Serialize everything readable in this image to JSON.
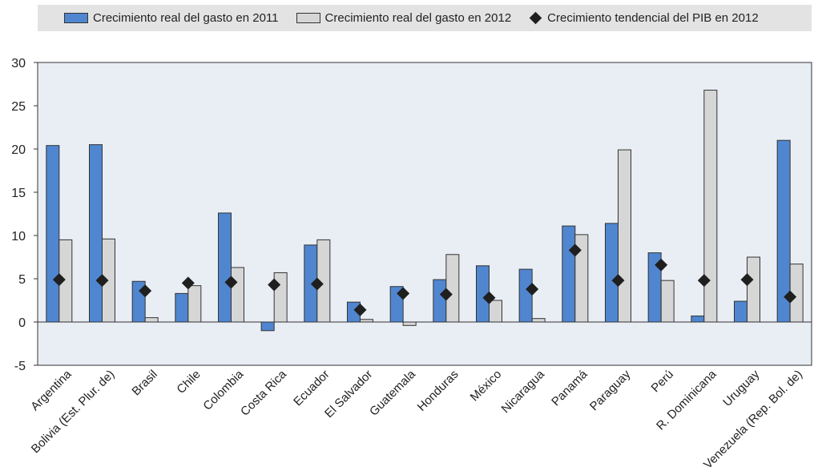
{
  "colors": {
    "s2011": "#4f86cf",
    "s2012": "#d6d6d6",
    "marker": "#1f1f1f",
    "plot_bg": "#e9eef5"
  },
  "chart_data": {
    "type": "bar",
    "categories": [
      "Argentina",
      "Bolivia (Est. Plur. de)",
      "Brasil",
      "Chile",
      "Colombia",
      "Costa Rica",
      "Ecuador",
      "El Salvador",
      "Guatemala",
      "Honduras",
      "México",
      "Nicaragua",
      "Panamá",
      "Paraguay",
      "Perú",
      "R. Dominicana",
      "Uruguay",
      "Venezuela (Rep. Bol. de)"
    ],
    "series": [
      {
        "name": "Crecimiento real del gasto en 2011",
        "type": "bar",
        "values": [
          20.4,
          20.5,
          4.7,
          3.3,
          12.6,
          -1.0,
          8.9,
          2.3,
          4.1,
          4.9,
          6.5,
          6.1,
          11.1,
          11.4,
          8.0,
          0.7,
          2.4,
          21.0
        ]
      },
      {
        "name": "Crecimiento real del gasto en 2012",
        "type": "bar",
        "values": [
          9.5,
          9.6,
          0.5,
          4.2,
          6.3,
          5.7,
          9.5,
          0.3,
          -0.4,
          7.8,
          2.5,
          0.4,
          10.1,
          19.9,
          4.8,
          26.8,
          7.5,
          6.7
        ]
      },
      {
        "name": "Crecimiento tendencial del PIB en 2012",
        "type": "scatter",
        "values": [
          4.9,
          4.8,
          3.6,
          4.5,
          4.6,
          4.3,
          4.4,
          1.4,
          3.3,
          3.2,
          2.8,
          3.8,
          8.3,
          4.8,
          6.6,
          4.8,
          4.9,
          2.9
        ]
      }
    ],
    "yticks": [
      -5,
      0,
      5,
      10,
      15,
      20,
      25,
      30
    ],
    "ylim": [
      -5,
      30
    ],
    "grid": false,
    "legend_position": "top"
  }
}
